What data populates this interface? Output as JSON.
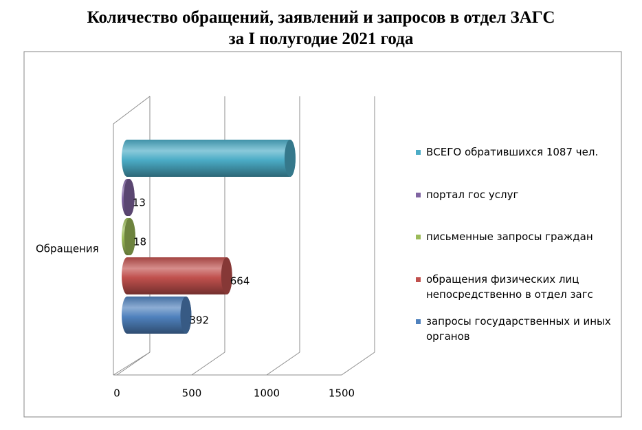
{
  "chart_data": {
    "type": "bar3d_horizontal",
    "title": "Количество обращений, заявлений и запросов в отдел ЗАГС\nза I полугодие 2021 года",
    "categories": [
      "Обращения"
    ],
    "series": [
      {
        "name": "запросы государственных и иных органов",
        "color": "#4f81bd",
        "values": [
          392
        ],
        "data_labels": true
      },
      {
        "name": "обращения физических лиц непосредственно в отдел загс",
        "color": "#c0504d",
        "values": [
          664
        ],
        "data_labels": true
      },
      {
        "name": "письменные запросы граждан",
        "color": "#9bbb59",
        "values": [
          18
        ],
        "data_labels": true
      },
      {
        "name": "портал гос услуг",
        "color": "#8064a2",
        "values": [
          13
        ],
        "data_labels": true
      },
      {
        "name": "ВСЕГО обратившихся 1087 чел.",
        "color": "#4bacc6",
        "values": [
          1087
        ],
        "data_labels": false
      }
    ],
    "xlim": [
      0,
      1500
    ],
    "xticks": [
      0,
      500,
      1000,
      1500
    ],
    "grid": true,
    "legend": "right"
  }
}
